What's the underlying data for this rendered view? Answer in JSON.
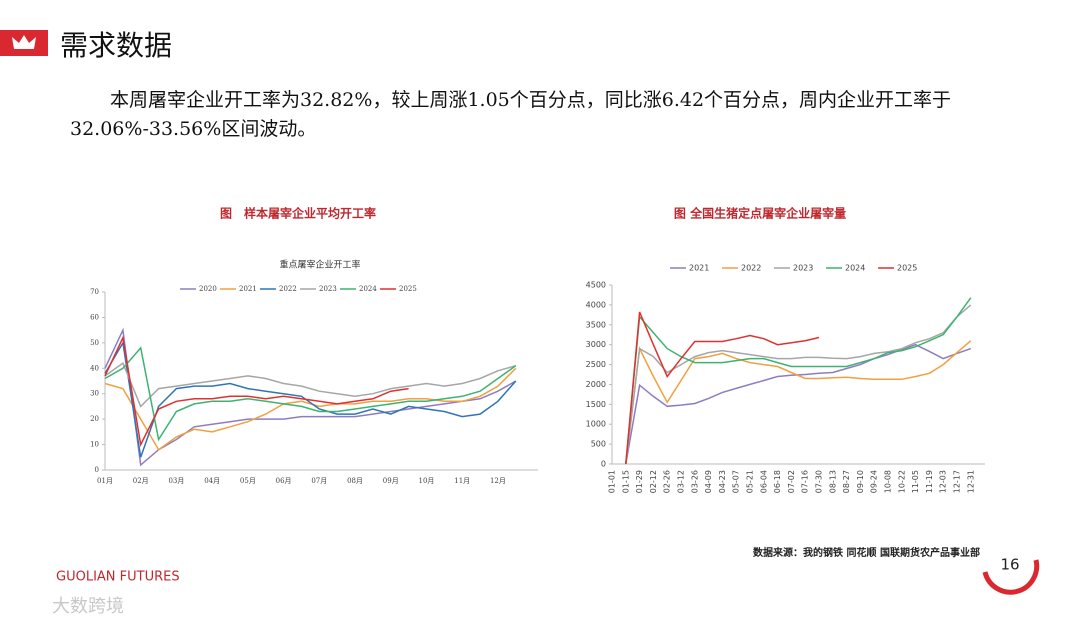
{
  "header": {
    "title": "需求数据"
  },
  "body": {
    "text": "本周屠宰企业开工率为32.82%，较上周涨1.05个百分点，同比涨6.42个百分点，周内企业开工率于32.06%-33.56%区间波动。"
  },
  "chart_data": [
    {
      "type": "line",
      "caption": "图　样本屠宰企业平均开工率",
      "title": "重点屠宰企业开工率",
      "categories": [
        "01月",
        null,
        "02月",
        null,
        "03月",
        null,
        "04月",
        null,
        "05月",
        null,
        "06月",
        null,
        "07月",
        null,
        "08月",
        null,
        "09月",
        null,
        "10月",
        null,
        "11月",
        null,
        "12月",
        null
      ],
      "ylim": [
        0,
        70
      ],
      "yticks": [
        0,
        10,
        20,
        30,
        40,
        50,
        60,
        70
      ],
      "grid": false,
      "legend": "top",
      "series": [
        {
          "name": "2020",
          "color": "#8e7cc3",
          "values": [
            40,
            55,
            2,
            8,
            12,
            17,
            18,
            19,
            20,
            20,
            20,
            21,
            21,
            21,
            21,
            22,
            23,
            24,
            25,
            26,
            27,
            28,
            31,
            35
          ]
        },
        {
          "name": "2021",
          "color": "#f0a040",
          "values": [
            34,
            32,
            20,
            8,
            13,
            16,
            15,
            17,
            19,
            22,
            26,
            27,
            25,
            26,
            26,
            27,
            27,
            28,
            28,
            27,
            27,
            29,
            33,
            40
          ]
        },
        {
          "name": "2022",
          "color": "#2e75b6",
          "values": [
            38,
            50,
            5,
            25,
            32,
            33,
            33,
            34,
            32,
            31,
            30,
            29,
            24,
            22,
            22,
            24,
            22,
            25,
            24,
            23,
            21,
            22,
            27,
            35
          ]
        },
        {
          "name": "2023",
          "color": "#a6a6a6",
          "values": [
            37,
            42,
            25,
            32,
            33,
            34,
            35,
            36,
            37,
            36,
            34,
            33,
            31,
            30,
            29,
            30,
            32,
            33,
            34,
            33,
            34,
            36,
            39,
            41
          ]
        },
        {
          "name": "2024",
          "color": "#3cb371",
          "values": [
            36,
            40,
            48,
            12,
            23,
            26,
            27,
            27,
            28,
            27,
            26,
            25,
            23,
            23,
            24,
            25,
            26,
            27,
            27,
            28,
            29,
            31,
            36,
            41
          ]
        },
        {
          "name": "2025",
          "color": "#e03030",
          "values": [
            37,
            52,
            10,
            24,
            27,
            28,
            28,
            29,
            29,
            28,
            29,
            28,
            27,
            26,
            27,
            28,
            31,
            32,
            null,
            null,
            null,
            null,
            null,
            null
          ]
        }
      ]
    },
    {
      "type": "line",
      "caption": "图  全国生猪定点屠宰企业屠宰量",
      "categories": [
        "01-01",
        "01-15",
        "01-29",
        "02-12",
        "02-26",
        "03-12",
        "03-26",
        "04-09",
        "04-23",
        "05-07",
        "05-21",
        "06-04",
        "06-18",
        "07-02",
        "07-16",
        "07-30",
        "08-13",
        "08-27",
        "09-10",
        "09-24",
        "10-08",
        "10-22",
        "11-05",
        "11-19",
        "12-03",
        "12-17",
        "12-31"
      ],
      "ylim": [
        0,
        4500
      ],
      "yticks": [
        0,
        500,
        1000,
        1500,
        2000,
        2500,
        3000,
        3500,
        4000,
        4500
      ],
      "grid": false,
      "legend": "top",
      "series": [
        {
          "name": "2021",
          "color": "#8e7cc3",
          "values": [
            null,
            0,
            1980,
            1700,
            1450,
            1480,
            1520,
            1650,
            1800,
            1900,
            2000,
            2100,
            2200,
            2230,
            2250,
            2280,
            2300,
            2400,
            2500,
            2650,
            2750,
            2880,
            3000,
            2830,
            2650,
            2780,
            2900
          ]
        },
        {
          "name": "2022",
          "color": "#f0a040",
          "values": [
            null,
            0,
            2900,
            2200,
            1550,
            2100,
            2650,
            2700,
            2780,
            2650,
            2550,
            2500,
            2450,
            2300,
            2150,
            2150,
            2170,
            2180,
            2150,
            2130,
            2130,
            2130,
            2200,
            2280,
            2500,
            2800,
            3100
          ]
        },
        {
          "name": "2023",
          "color": "#a6a6a6",
          "values": [
            null,
            0,
            2900,
            2700,
            2300,
            2500,
            2700,
            2800,
            2850,
            2800,
            2750,
            2700,
            2650,
            2650,
            2680,
            2680,
            2660,
            2650,
            2700,
            2780,
            2820,
            2900,
            3050,
            3150,
            3300,
            3700,
            4000
          ]
        },
        {
          "name": "2024",
          "color": "#3cb371",
          "values": [
            null,
            0,
            3700,
            3300,
            2900,
            2700,
            2550,
            2550,
            2550,
            2600,
            2650,
            2650,
            2550,
            2450,
            2450,
            2450,
            2450,
            2450,
            2550,
            2650,
            2800,
            2850,
            2950,
            3100,
            3250,
            3700,
            4180
          ]
        },
        {
          "name": "2025",
          "color": "#e03030",
          "values": [
            null,
            0,
            3820,
            3000,
            2200,
            2650,
            3080,
            3080,
            3080,
            3150,
            3230,
            3150,
            3000,
            3050,
            3100,
            3180,
            null,
            null,
            null,
            null,
            null,
            null,
            null,
            null,
            null,
            null,
            null
          ]
        }
      ]
    }
  ],
  "footer": {
    "source": "数据来源：我的钢铁  同花顺  国联期货农产品事业部",
    "brand": "GUOLIAN FUTURES",
    "page": "16",
    "watermark": "大数跨境"
  }
}
